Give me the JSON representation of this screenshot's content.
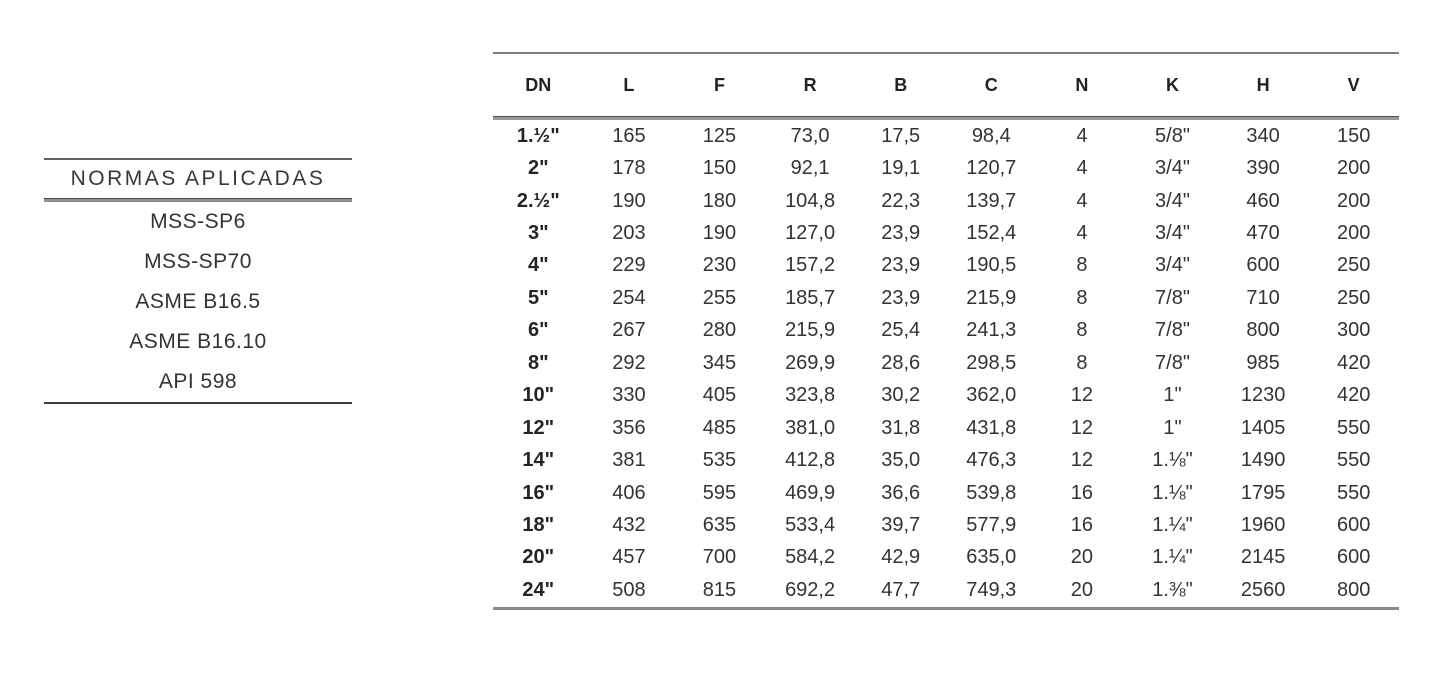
{
  "normas": {
    "title": "NORMAS APLICADAS",
    "items": [
      "MSS-SP6",
      "MSS-SP70",
      "ASME B16.5",
      "ASME B16.10",
      "API 598"
    ]
  },
  "table": {
    "columns": [
      "DN",
      "L",
      "F",
      "R",
      "B",
      "C",
      "N",
      "K",
      "H",
      "V"
    ],
    "rows": [
      [
        "1.½\"",
        "165",
        "125",
        "73,0",
        "17,5",
        "98,4",
        "4",
        "5/8\"",
        "340",
        "150"
      ],
      [
        "2\"",
        "178",
        "150",
        "92,1",
        "19,1",
        "120,7",
        "4",
        "3/4\"",
        "390",
        "200"
      ],
      [
        "2.½\"",
        "190",
        "180",
        "104,8",
        "22,3",
        "139,7",
        "4",
        "3/4\"",
        "460",
        "200"
      ],
      [
        "3\"",
        "203",
        "190",
        "127,0",
        "23,9",
        "152,4",
        "4",
        "3/4\"",
        "470",
        "200"
      ],
      [
        "4\"",
        "229",
        "230",
        "157,2",
        "23,9",
        "190,5",
        "8",
        "3/4\"",
        "600",
        "250"
      ],
      [
        "5\"",
        "254",
        "255",
        "185,7",
        "23,9",
        "215,9",
        "8",
        "7/8\"",
        "710",
        "250"
      ],
      [
        "6\"",
        "267",
        "280",
        "215,9",
        "25,4",
        "241,3",
        "8",
        "7/8\"",
        "800",
        "300"
      ],
      [
        "8\"",
        "292",
        "345",
        "269,9",
        "28,6",
        "298,5",
        "8",
        "7/8\"",
        "985",
        "420"
      ],
      [
        "10\"",
        "330",
        "405",
        "323,8",
        "30,2",
        "362,0",
        "12",
        "1\"",
        "1230",
        "420"
      ],
      [
        "12\"",
        "356",
        "485",
        "381,0",
        "31,8",
        "431,8",
        "12",
        "1\"",
        "1405",
        "550"
      ],
      [
        "14\"",
        "381",
        "535",
        "412,8",
        "35,0",
        "476,3",
        "12",
        "1.⅛\"",
        "1490",
        "550"
      ],
      [
        "16\"",
        "406",
        "595",
        "469,9",
        "36,6",
        "539,8",
        "16",
        "1.⅛\"",
        "1795",
        "550"
      ],
      [
        "18\"",
        "432",
        "635",
        "533,4",
        "39,7",
        "577,9",
        "16",
        "1.¼\"",
        "1960",
        "600"
      ],
      [
        "20\"",
        "457",
        "700",
        "584,2",
        "42,9",
        "635,0",
        "20",
        "1.¼\"",
        "2145",
        "600"
      ],
      [
        "24\"",
        "508",
        "815",
        "692,2",
        "47,7",
        "749,3",
        "20",
        "1.⅜\"",
        "2560",
        "800"
      ]
    ]
  },
  "colors": {
    "text": "#2e2e2e",
    "line_gray": "#8a8a8a",
    "line_dark": "#3c3c3c",
    "background": "#ffffff"
  }
}
